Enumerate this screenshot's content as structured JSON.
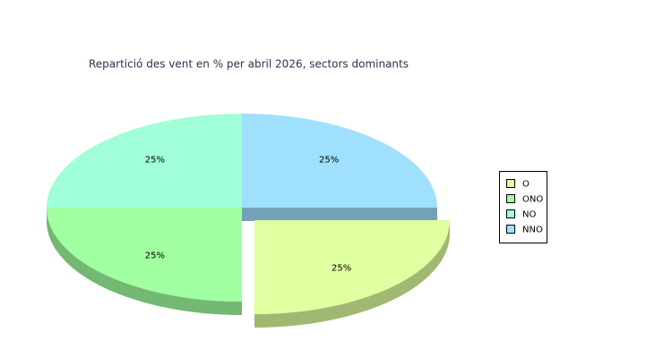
{
  "chart_data": {
    "type": "pie",
    "title": "Repartició des vent en % per abril 2026, sectors dominants",
    "categories": [
      "O",
      "ONO",
      "NO",
      "NNO"
    ],
    "values": [
      25,
      25,
      25,
      25
    ],
    "value_labels": [
      "25%",
      "25%",
      "25%",
      "25%"
    ],
    "colors": [
      "#e0ffa0",
      "#a0ffa0",
      "#a0ffd8",
      "#a0e0ff"
    ],
    "legend": "right"
  }
}
